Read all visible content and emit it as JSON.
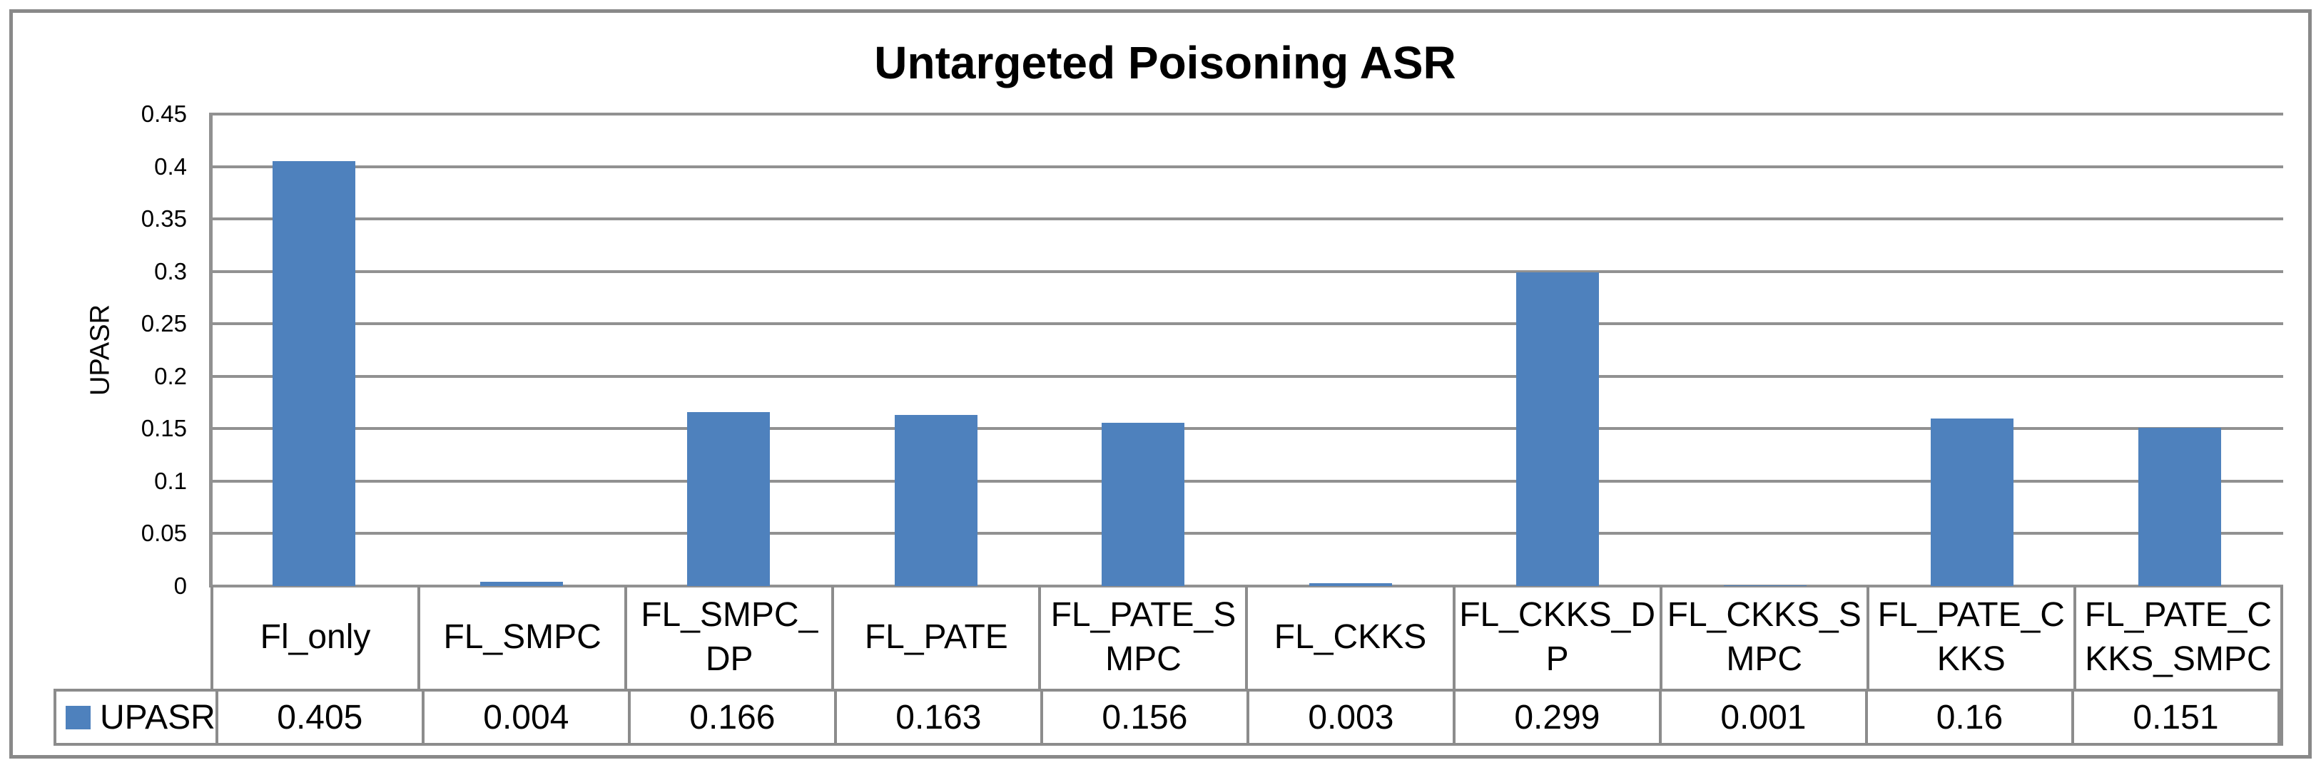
{
  "chart_data": {
    "type": "bar",
    "title": "Untargeted Poisoning ASR",
    "ylabel": "UPASR",
    "xlabel": "",
    "categories": [
      "Fl_only",
      "FL_SMPC",
      "FL_SMPC_DP",
      "FL_PATE",
      "FL_PATE_SMPC",
      "FL_CKKS",
      "FL_CKKS_DP",
      "FL_CKKS_SMPC",
      "FL_PATE_CKKS",
      "FL_PATE_CKKS_SMPC"
    ],
    "series": [
      {
        "name": "UPASR",
        "values": [
          0.405,
          0.004,
          0.166,
          0.163,
          0.156,
          0.003,
          0.299,
          0.001,
          0.16,
          0.151
        ],
        "labels": [
          "0.405",
          "0.004",
          "0.166",
          "0.163",
          "0.156",
          "0.003",
          "0.299",
          "0.001",
          "0.16",
          "0.151"
        ]
      }
    ],
    "ylim": [
      0,
      0.45
    ],
    "yticks": [
      0,
      0.05,
      0.1,
      0.15,
      0.2,
      0.25,
      0.3,
      0.35,
      0.4,
      0.45
    ],
    "ytick_labels": [
      "0",
      "0.05",
      "0.1",
      "0.15",
      "0.2",
      "0.25",
      "0.3",
      "0.35",
      "0.4",
      "0.45"
    ],
    "grid": true,
    "legend_position": "bottom-table-left",
    "colors": {
      "bar": "#4E81BD",
      "grid": "#919191",
      "frame_border": "#898989",
      "table_border": "#8C8C8C",
      "text": "#000000",
      "background": "#FFFFFF"
    }
  }
}
